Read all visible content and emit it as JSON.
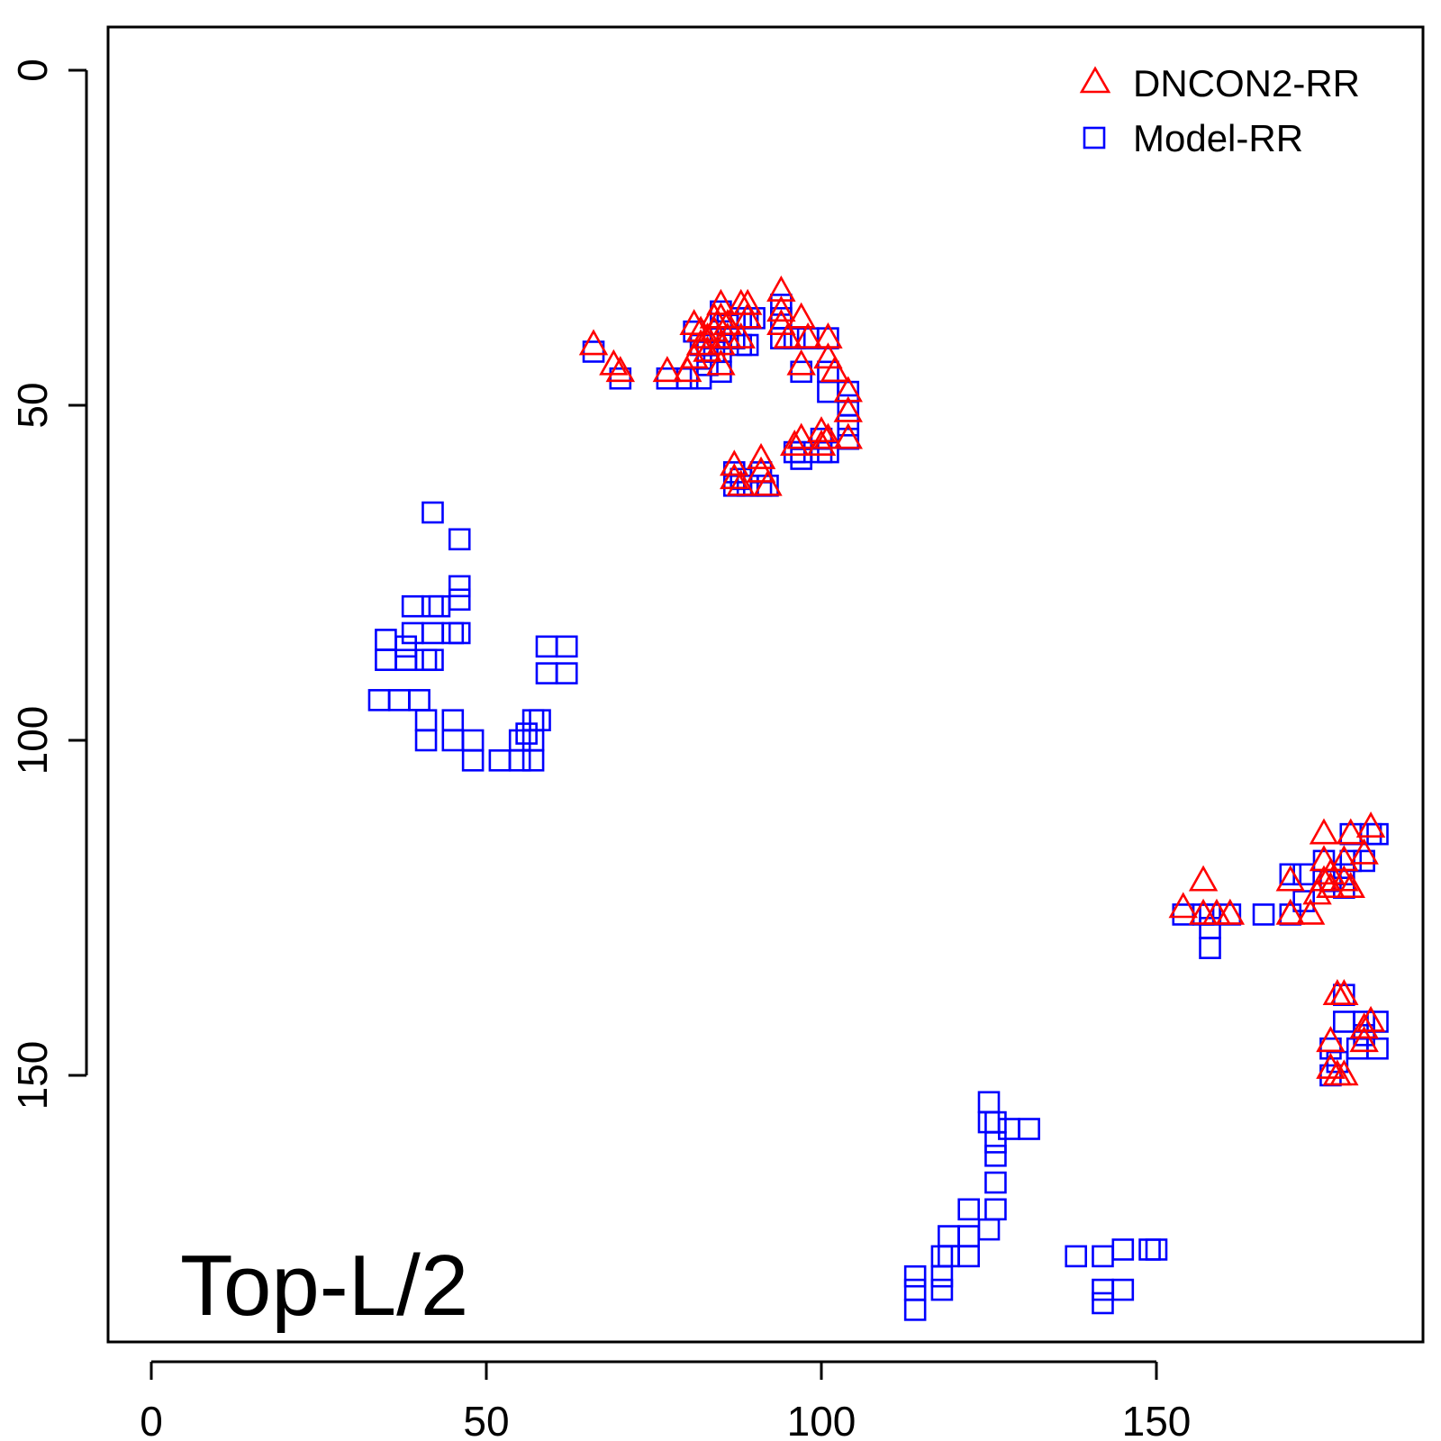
{
  "chart_data": {
    "type": "scatter",
    "title": "",
    "xlabel": "",
    "ylabel": "",
    "xlim": [
      -6,
      189
    ],
    "ylim": [
      -6,
      189
    ],
    "y_reversed": true,
    "x_ticks": [
      0,
      50,
      100,
      150
    ],
    "y_ticks": [
      0,
      50,
      100,
      150
    ],
    "x_tick_labels": [
      "0",
      "50",
      "100",
      "150"
    ],
    "y_tick_labels": [
      "0",
      "50",
      "100",
      "150"
    ],
    "annotation": "Top-L/2",
    "legend": {
      "position": "top-right"
    },
    "series": [
      {
        "name": "DNCON2-RR",
        "marker": "triangle",
        "color": "#ff0000",
        "points": [
          [
            66,
            41
          ],
          [
            69,
            44
          ],
          [
            70,
            45
          ],
          [
            77,
            45
          ],
          [
            80,
            45
          ],
          [
            81,
            43
          ],
          [
            81,
            38
          ],
          [
            82,
            41
          ],
          [
            82,
            39
          ],
          [
            83,
            42
          ],
          [
            83,
            40
          ],
          [
            84,
            37
          ],
          [
            84,
            39
          ],
          [
            85,
            37
          ],
          [
            85,
            35
          ],
          [
            85,
            41
          ],
          [
            85,
            44
          ],
          [
            86,
            38
          ],
          [
            86,
            40
          ],
          [
            88,
            35
          ],
          [
            88,
            40
          ],
          [
            89,
            35
          ],
          [
            89,
            37
          ],
          [
            94,
            33
          ],
          [
            94,
            36
          ],
          [
            94,
            38
          ],
          [
            95,
            40
          ],
          [
            97,
            37
          ],
          [
            97,
            44
          ],
          [
            98,
            40
          ],
          [
            101,
            40
          ],
          [
            101,
            43
          ],
          [
            102,
            45
          ],
          [
            104,
            48
          ],
          [
            104,
            51
          ],
          [
            104,
            55
          ],
          [
            87,
            59
          ],
          [
            87,
            61
          ],
          [
            88,
            62
          ],
          [
            91,
            58
          ],
          [
            91,
            60
          ],
          [
            92,
            62
          ],
          [
            96,
            56
          ],
          [
            97,
            55
          ],
          [
            100,
            54
          ],
          [
            100,
            56
          ],
          [
            101,
            55
          ],
          [
            154,
            125
          ],
          [
            157,
            121
          ],
          [
            157,
            126
          ],
          [
            159,
            126
          ],
          [
            161,
            126
          ],
          [
            170,
            121
          ],
          [
            170,
            126
          ],
          [
            173,
            126
          ],
          [
            174,
            123
          ],
          [
            175,
            114
          ],
          [
            175,
            118
          ],
          [
            175,
            121
          ],
          [
            176,
            120
          ],
          [
            176,
            122
          ],
          [
            178,
            118
          ],
          [
            178,
            121
          ],
          [
            179,
            114
          ],
          [
            179,
            122
          ],
          [
            181,
            117
          ],
          [
            182,
            113
          ],
          [
            177,
            138
          ],
          [
            178,
            138
          ],
          [
            181,
            143
          ],
          [
            181,
            145
          ],
          [
            182,
            142
          ],
          [
            176,
            145
          ],
          [
            176,
            149
          ],
          [
            177,
            150
          ],
          [
            178,
            150
          ]
        ]
      },
      {
        "name": "Model-RR",
        "marker": "square",
        "color": "#0000ff",
        "points": [
          [
            66,
            42
          ],
          [
            70,
            46
          ],
          [
            77,
            46
          ],
          [
            80,
            46
          ],
          [
            82,
            46
          ],
          [
            81,
            39
          ],
          [
            82,
            41
          ],
          [
            83,
            42
          ],
          [
            83,
            44
          ],
          [
            84,
            40
          ],
          [
            84,
            42
          ],
          [
            85,
            36
          ],
          [
            85,
            40
          ],
          [
            85,
            42
          ],
          [
            85,
            45
          ],
          [
            86,
            38
          ],
          [
            86,
            40
          ],
          [
            87,
            40
          ],
          [
            88,
            37
          ],
          [
            88,
            41
          ],
          [
            89,
            37
          ],
          [
            89,
            41
          ],
          [
            90,
            37
          ],
          [
            94,
            35
          ],
          [
            94,
            37
          ],
          [
            94,
            40
          ],
          [
            96,
            40
          ],
          [
            98,
            40
          ],
          [
            97,
            45
          ],
          [
            101,
            40
          ],
          [
            101,
            45
          ],
          [
            101,
            48
          ],
          [
            104,
            48
          ],
          [
            104,
            50
          ],
          [
            104,
            53
          ],
          [
            104,
            55
          ],
          [
            87,
            60
          ],
          [
            87,
            62
          ],
          [
            88,
            61
          ],
          [
            89,
            62
          ],
          [
            91,
            60
          ],
          [
            91,
            62
          ],
          [
            92,
            62
          ],
          [
            96,
            57
          ],
          [
            97,
            57
          ],
          [
            97,
            58
          ],
          [
            100,
            55
          ],
          [
            100,
            57
          ],
          [
            101,
            57
          ],
          [
            42,
            66
          ],
          [
            46,
            70
          ],
          [
            46,
            77
          ],
          [
            46,
            79
          ],
          [
            46,
            84
          ],
          [
            45,
            84
          ],
          [
            43,
            80
          ],
          [
            42,
            80
          ],
          [
            42,
            84
          ],
          [
            42,
            88
          ],
          [
            41,
            88
          ],
          [
            39,
            80
          ],
          [
            39,
            84
          ],
          [
            38,
            86
          ],
          [
            38,
            88
          ],
          [
            35,
            85
          ],
          [
            35,
            88
          ],
          [
            34,
            94
          ],
          [
            37,
            94
          ],
          [
            40,
            94
          ],
          [
            41,
            97
          ],
          [
            41,
            100
          ],
          [
            45,
            97
          ],
          [
            45,
            100
          ],
          [
            48,
            100
          ],
          [
            48,
            103
          ],
          [
            52,
            103
          ],
          [
            55,
            100
          ],
          [
            55,
            103
          ],
          [
            56,
            99
          ],
          [
            57,
            97
          ],
          [
            57,
            100
          ],
          [
            57,
            103
          ],
          [
            58,
            97
          ],
          [
            59,
            86
          ],
          [
            59,
            90
          ],
          [
            62,
            86
          ],
          [
            62,
            90
          ],
          [
            154,
            126
          ],
          [
            157,
            126
          ],
          [
            158,
            126
          ],
          [
            158,
            128
          ],
          [
            158,
            131
          ],
          [
            161,
            126
          ],
          [
            166,
            126
          ],
          [
            170,
            120
          ],
          [
            170,
            126
          ],
          [
            172,
            120
          ],
          [
            172,
            124
          ],
          [
            175,
            118
          ],
          [
            176,
            121
          ],
          [
            178,
            120
          ],
          [
            178,
            122
          ],
          [
            179,
            114
          ],
          [
            179,
            118
          ],
          [
            181,
            118
          ],
          [
            182,
            114
          ],
          [
            183,
            114
          ],
          [
            125,
            154
          ],
          [
            125,
            157
          ],
          [
            126,
            157
          ],
          [
            126,
            160
          ],
          [
            126,
            162
          ],
          [
            128,
            158
          ],
          [
            131,
            158
          ],
          [
            126,
            166
          ],
          [
            126,
            170
          ],
          [
            122,
            170
          ],
          [
            122,
            174
          ],
          [
            125,
            173
          ],
          [
            122,
            177
          ],
          [
            119,
            174
          ],
          [
            119,
            177
          ],
          [
            118,
            177
          ],
          [
            118,
            180
          ],
          [
            118,
            182
          ],
          [
            114,
            180
          ],
          [
            114,
            182
          ],
          [
            114,
            185
          ],
          [
            138,
            177
          ],
          [
            142,
            177
          ],
          [
            142,
            182
          ],
          [
            142,
            184
          ],
          [
            145,
            176
          ],
          [
            145,
            182
          ],
          [
            149,
            176
          ],
          [
            150,
            176
          ],
          [
            178,
            138
          ],
          [
            178,
            142
          ],
          [
            181,
            142
          ],
          [
            181,
            144
          ],
          [
            183,
            142
          ],
          [
            180,
            146
          ],
          [
            183,
            146
          ],
          [
            176,
            146
          ],
          [
            177,
            148
          ],
          [
            176,
            150
          ]
        ]
      }
    ]
  }
}
